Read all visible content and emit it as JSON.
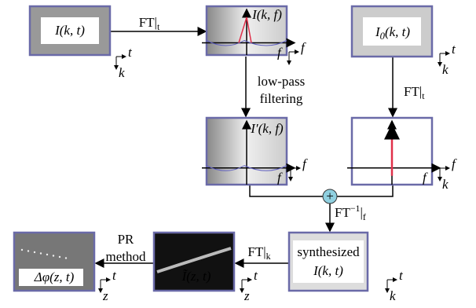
{
  "nodes": [
    {
      "label": {
        "pre": "I(k, t)"
      },
      "axes": {
        "h": "t",
        "v": "k"
      }
    },
    {
      "label": {
        "pre": "I(k, f)"
      },
      "freq_axis": "f",
      "axes": {
        "h": "f"
      }
    },
    {
      "label": {
        "pre": "I",
        "sub": "0",
        "post": "(k, t)"
      },
      "axes": {
        "h": "t",
        "v": "k"
      }
    },
    {
      "label": {
        "pre": "I′(k, f)"
      },
      "freq_axis": "f",
      "axes": {
        "h": "f"
      }
    },
    {
      "freq_axis": "f",
      "axes": {
        "h": "f",
        "v": "k"
      }
    },
    {
      "label": {
        "pre": "synthesized"
      },
      "label2": {
        "pre": "I(k, t)"
      },
      "axes": {
        "h": "t",
        "v": "k"
      }
    },
    {
      "label": {
        "pre": "Ĩ(z, t)"
      },
      "axes": {
        "h": "t",
        "v": "z"
      }
    },
    {
      "label": {
        "pre": "Δφ(z, t)"
      },
      "axes": {
        "h": "t",
        "v": "z"
      }
    }
  ],
  "edges": [
    {
      "label": {
        "pre": "FT|",
        "sub": "t"
      }
    },
    {
      "label": {
        "pre": "low-pass"
      },
      "label2": {
        "pre": "filtering"
      }
    },
    {
      "label": {
        "pre": "FT|",
        "sub": "t"
      }
    },
    {
      "label": {
        "pre": "FT",
        "sup": "−1",
        "mid": "|",
        "sub": "f"
      }
    },
    {
      "label": {
        "pre": "FT|",
        "sub": "k"
      }
    },
    {
      "label": {
        "pre": "PR"
      },
      "label2": {
        "pre": "method"
      }
    }
  ],
  "combiner": "+"
}
